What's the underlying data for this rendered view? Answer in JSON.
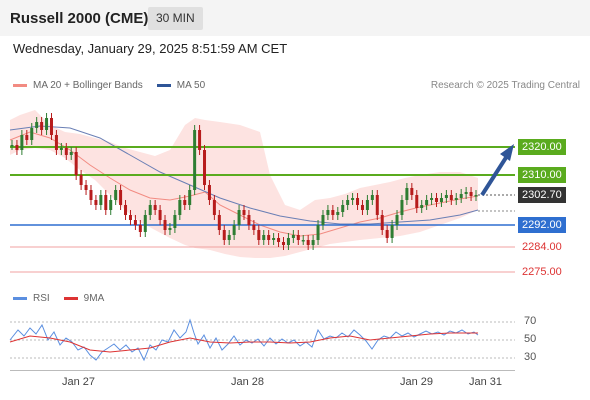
{
  "header": {
    "title": "Russell 2000 (CME)",
    "timeframe": "30 MIN"
  },
  "datetime": "Wednesday, January 29, 2025 8:51:59 AM CET",
  "legend": {
    "bollinger": "MA 20 + Bollinger Bands",
    "ma50": "MA 50",
    "research": "Research © 2025 Trading Central",
    "bollinger_color": "#f28b82",
    "ma50_color": "#2f5597"
  },
  "levels": {
    "r2": "2320.00",
    "r1": "2310.00",
    "last": "2302.70",
    "pivot": "2292.00",
    "s1": "2284.00",
    "s2": "2275.00"
  },
  "rsi_legend": {
    "rsi": "RSI",
    "ma": "9MA"
  },
  "rsi_ticks": [
    "70",
    "50",
    "30"
  ],
  "xaxis": [
    "Jan 27",
    "Jan 28",
    "Jan 29",
    "Jan 31"
  ],
  "colors": {
    "resistance": "#5aab1e",
    "pivot": "#2f6fd0",
    "support": "#e05050",
    "arrow": "#2f5597"
  }
}
